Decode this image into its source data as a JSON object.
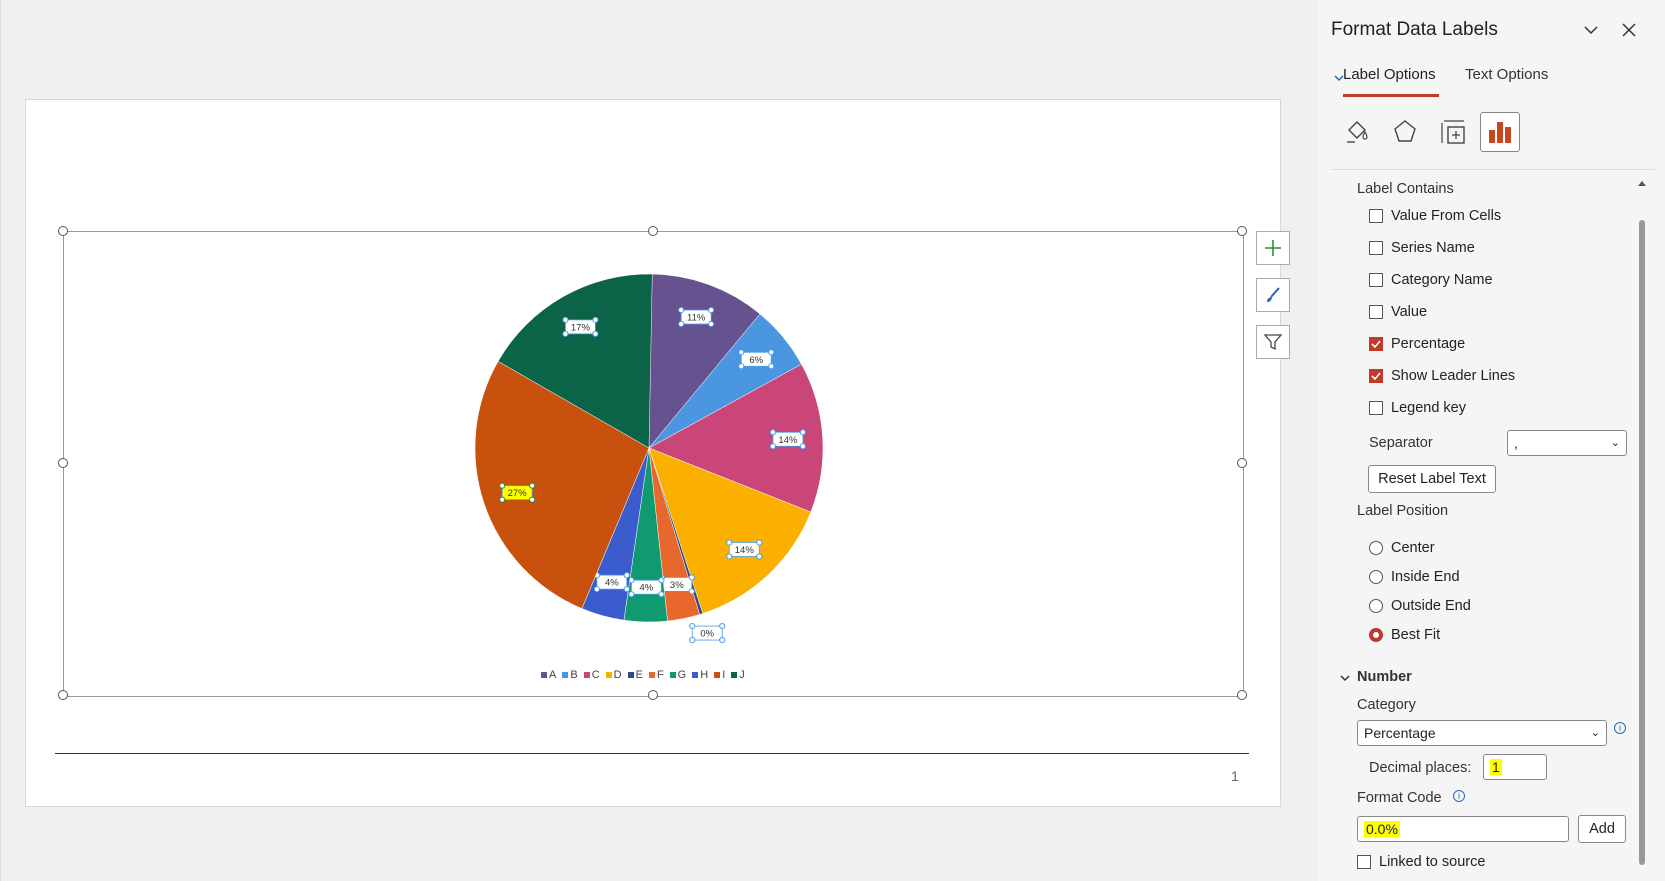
{
  "pane": {
    "title": "Format Data Labels",
    "tabs": [
      {
        "label": "Label Options",
        "active": true
      },
      {
        "label": "Text Options",
        "active": false
      }
    ],
    "icon_tabs": [
      "fill-line-icon",
      "effects-icon",
      "size-properties-icon",
      "label-options-icon"
    ],
    "label_contains": {
      "heading": "Label Contains",
      "options": [
        {
          "label": "Value From Cells",
          "checked": false
        },
        {
          "label": "Series Name",
          "checked": false
        },
        {
          "label": "Category Name",
          "checked": false
        },
        {
          "label": "Value",
          "checked": false
        },
        {
          "label": "Percentage",
          "checked": true
        },
        {
          "label": "Show Leader Lines",
          "checked": true
        },
        {
          "label": "Legend key",
          "checked": false
        }
      ],
      "separator_label": "Separator",
      "separator_value": ",",
      "reset_button": "Reset Label Text"
    },
    "label_position": {
      "heading": "Label Position",
      "options": [
        {
          "label": "Center",
          "checked": false
        },
        {
          "label": "Inside End",
          "checked": false
        },
        {
          "label": "Outside End",
          "checked": false
        },
        {
          "label": "Best Fit",
          "checked": true
        }
      ]
    },
    "number": {
      "heading": "Number",
      "category_label": "Category",
      "category_value": "Percentage",
      "decimal_label": "Decimal places:",
      "decimal_value": "1",
      "format_code_label": "Format Code",
      "format_code_value": "0.0%",
      "add_button": "Add",
      "linked_label": "Linked to source",
      "linked_checked": false
    }
  },
  "slide": {
    "page_number": "1"
  },
  "colors": {
    "accent": "#c0392b",
    "highlight": "#ffff00"
  },
  "chart_data": {
    "type": "pie",
    "categories": [
      "A",
      "B",
      "C",
      "D",
      "E",
      "F",
      "G",
      "H",
      "I",
      "J"
    ],
    "values": [
      11,
      6,
      14,
      14,
      0,
      3,
      4,
      4,
      27,
      17
    ],
    "labels": [
      "11%",
      "6%",
      "14%",
      "14%",
      "0%",
      "3%",
      "4%",
      "4%",
      "27%",
      "17%"
    ],
    "colors": [
      "#66528f",
      "#4a96e0",
      "#cb4678",
      "#fbb000",
      "#2e4a86",
      "#e8672c",
      "#0f9a70",
      "#3a5ccc",
      "#c8510e",
      "#0b6348"
    ],
    "legend_placement": "bottom",
    "selected_label": "I"
  }
}
